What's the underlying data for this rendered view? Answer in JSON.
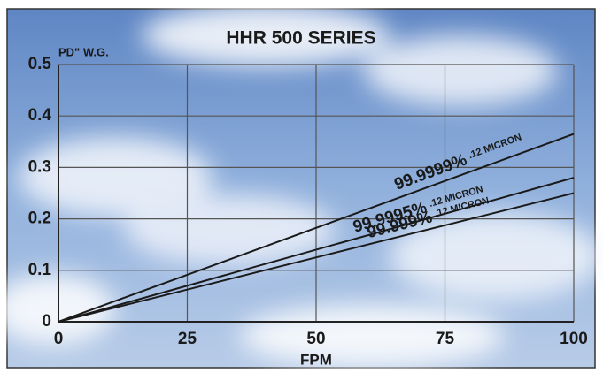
{
  "chart_data": {
    "type": "line",
    "title": "HHR 500 SERIES",
    "y_label": "PD\" W.G.",
    "x_label": "FPM",
    "x": [
      0,
      100
    ],
    "series": [
      {
        "name": "99.9999%",
        "subname": ".12 MICRON",
        "color": "#1a1a1a",
        "values": [
          0,
          0.365
        ]
      },
      {
        "name": "99.9995%",
        "subname": ".12 MICRON",
        "color": "#1a1a1a",
        "values": [
          0,
          0.28
        ]
      },
      {
        "name": "99.999%",
        "subname": ".12 MICRON",
        "color": "#1a1a1a",
        "values": [
          0,
          0.25
        ]
      }
    ],
    "xlim": [
      0,
      100
    ],
    "xticks": [
      0,
      25,
      50,
      75,
      100
    ],
    "ylim": [
      0,
      0.5
    ],
    "yticks": [
      0,
      0.1,
      0.2,
      0.3,
      0.4,
      0.5
    ],
    "grid": true
  }
}
